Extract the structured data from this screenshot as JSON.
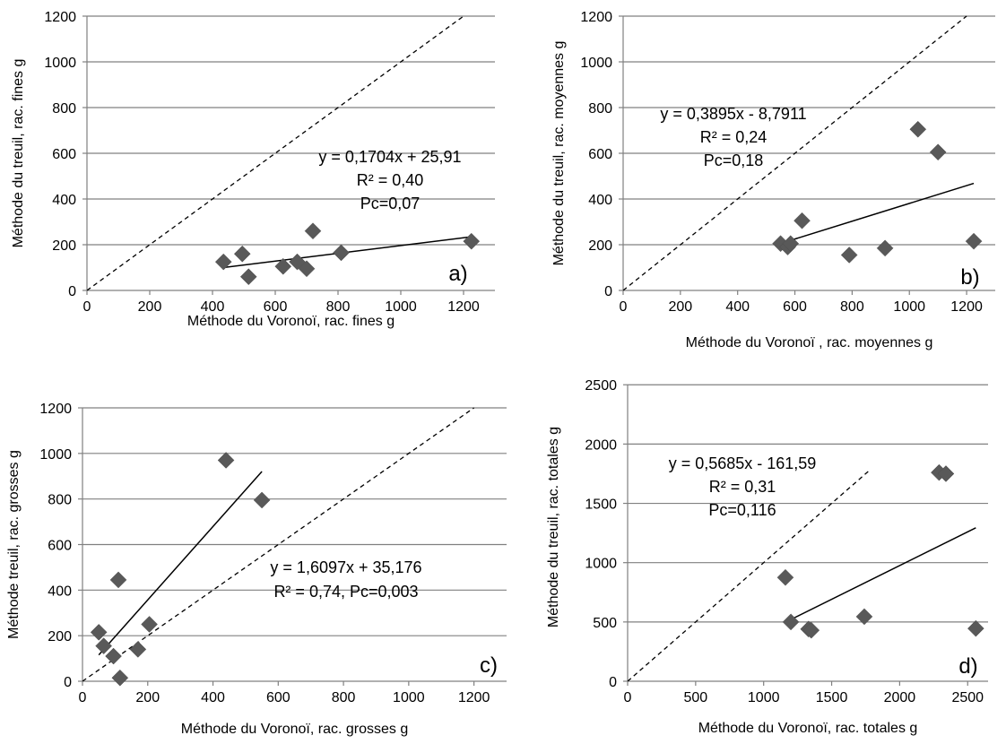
{
  "chart_data": [
    {
      "type": "scatter",
      "panel_label": "a)",
      "xlabel": "Méthode du Voronoï, rac. fines g",
      "ylabel": "Méthode du treuil, rac. fines g",
      "xlim": [
        0,
        1300
      ],
      "ylim": [
        0,
        1200
      ],
      "xticks": [
        0,
        200,
        400,
        600,
        800,
        1000,
        1200
      ],
      "yticks": [
        0,
        200,
        400,
        600,
        800,
        1000,
        1200
      ],
      "points": [
        [
          435,
          125
        ],
        [
          495,
          160
        ],
        [
          515,
          60
        ],
        [
          625,
          105
        ],
        [
          670,
          125
        ],
        [
          700,
          95
        ],
        [
          720,
          260
        ],
        [
          810,
          165
        ],
        [
          1225,
          215
        ]
      ],
      "fit": {
        "slope": 0.1704,
        "intercept": 25.91,
        "x_range": [
          435,
          1225
        ]
      },
      "identity_line": true,
      "annotation": [
        "y = 0,1704x + 25,91",
        "R² = 0,40",
        "Pc=0,07"
      ]
    },
    {
      "type": "scatter",
      "panel_label": "b)",
      "xlabel": "Méthode du Voronoï , rac. moyennes g",
      "ylabel": "Méthode du treuil, rac. moyennes g",
      "xlim": [
        0,
        1300
      ],
      "ylim": [
        0,
        1200
      ],
      "xticks": [
        0,
        200,
        400,
        600,
        800,
        1000,
        1200
      ],
      "yticks": [
        0,
        200,
        400,
        600,
        800,
        1000,
        1200
      ],
      "points": [
        [
          550,
          205
        ],
        [
          575,
          190
        ],
        [
          585,
          205
        ],
        [
          625,
          305
        ],
        [
          790,
          155
        ],
        [
          915,
          185
        ],
        [
          1030,
          705
        ],
        [
          1100,
          605
        ],
        [
          1225,
          215
        ]
      ],
      "fit": {
        "slope": 0.3895,
        "intercept": -8.7911,
        "x_range": [
          550,
          1225
        ]
      },
      "identity_line": true,
      "annotation": [
        "y = 0,3895x - 8,7911",
        "R² = 0,24",
        "Pc=0,18"
      ]
    },
    {
      "type": "scatter",
      "panel_label": "c)",
      "xlabel": "Méthode du Voronoï, rac. grosses g",
      "ylabel": "Méthode treuil, rac. grosses g",
      "xlim": [
        0,
        1300
      ],
      "ylim": [
        0,
        1200
      ],
      "xticks": [
        0,
        200,
        400,
        600,
        800,
        1000,
        1200
      ],
      "yticks": [
        0,
        200,
        400,
        600,
        800,
        1000,
        1200
      ],
      "points": [
        [
          50,
          215
        ],
        [
          65,
          155
        ],
        [
          95,
          110
        ],
        [
          110,
          445
        ],
        [
          115,
          15
        ],
        [
          170,
          140
        ],
        [
          205,
          250
        ],
        [
          440,
          970
        ],
        [
          550,
          795
        ]
      ],
      "fit": {
        "slope": 1.6097,
        "intercept": 35.176,
        "x_range": [
          50,
          550
        ]
      },
      "identity_line": true,
      "annotation": [
        "y = 1,6097x + 35,176",
        "R² = 0,74, Pc=0,003"
      ]
    },
    {
      "type": "scatter",
      "panel_label": "d)",
      "xlabel": "Méthode du Voronoï, rac. totales g",
      "ylabel": "Méthode du treuil, rac. totales g",
      "xlim": [
        0,
        2650
      ],
      "ylim": [
        0,
        2600
      ],
      "xticks": [
        0,
        500,
        1000,
        1500,
        2000,
        2500
      ],
      "yticks": [
        0,
        500,
        1000,
        1500,
        2000,
        2500
      ],
      "points": [
        [
          1160,
          875
        ],
        [
          1200,
          500
        ],
        [
          1330,
          440
        ],
        [
          1350,
          430
        ],
        [
          1740,
          545
        ],
        [
          2290,
          1760
        ],
        [
          2340,
          1750
        ],
        [
          2560,
          445
        ]
      ],
      "fit": {
        "slope": 0.5685,
        "intercept": -161.59,
        "x_range": [
          1200,
          2560
        ]
      },
      "identity_line": true,
      "identity_max": 1770,
      "annotation": [
        "y = 0,5685x - 161,59",
        "R² = 0,31",
        "Pc=0,116"
      ]
    }
  ]
}
